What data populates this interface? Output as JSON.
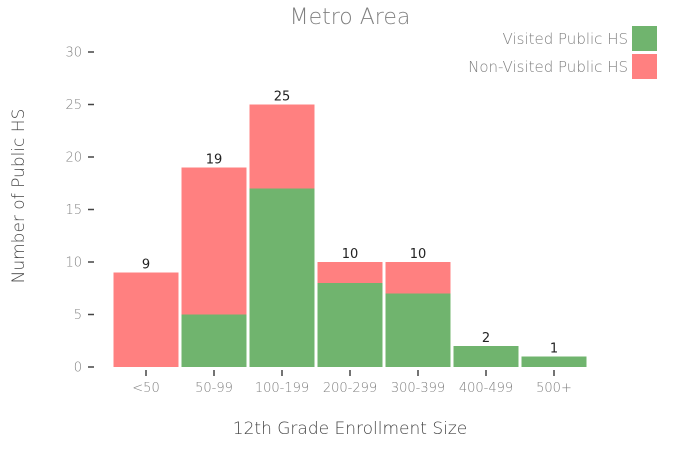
{
  "chart_data": {
    "type": "bar",
    "stacked": true,
    "title": "Metro Area",
    "xlabel": "12th Grade Enrollment Size",
    "ylabel": "Number of Public HS",
    "ylim": [
      0,
      30
    ],
    "yticks": [
      0,
      5,
      10,
      15,
      20,
      25,
      30
    ],
    "categories": [
      "<50",
      "50-99",
      "100-199",
      "200-299",
      "300-399",
      "400-499",
      "500+"
    ],
    "series": [
      {
        "name": "Visited Public HS",
        "color": "#70b46e",
        "values": [
          0,
          5,
          17,
          8,
          7,
          2,
          1
        ]
      },
      {
        "name": "Non-Visited Public HS",
        "color": "#ff8080",
        "values": [
          9,
          14,
          8,
          2,
          3,
          0,
          0
        ]
      }
    ],
    "totals": [
      9,
      19,
      25,
      10,
      10,
      2,
      1
    ],
    "legend_position": "top-right",
    "grid": false
  }
}
